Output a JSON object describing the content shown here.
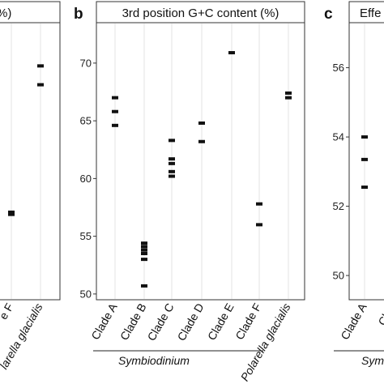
{
  "chart_data": [
    {
      "panel": "a",
      "type": "scatter",
      "title": "%)",
      "title_partial": true,
      "ylim": [
        48.5,
        73.5
      ],
      "categories": [
        "Clade F",
        "Polarella glacialis"
      ],
      "category_display": [
        "e F",
        "larella glacialis"
      ],
      "points": [
        {
          "category": "Clade F",
          "y": 56.4
        },
        {
          "category": "Clade F",
          "y": 56.2
        },
        {
          "category": "Polarella glacialis",
          "y": 69.6
        },
        {
          "category": "Polarella glacialis",
          "y": 67.9
        }
      ],
      "grid": "vertical"
    },
    {
      "panel": "b",
      "type": "scatter",
      "title": "3rd position G+C content (%)",
      "ylabel": "",
      "ylim": [
        49.5,
        73.5
      ],
      "yticks": [
        50,
        55,
        60,
        65,
        70
      ],
      "categories": [
        "Clade A",
        "Clade B",
        "Clade C",
        "Clade D",
        "Clade E",
        "Clade F",
        "Polarella glacialis"
      ],
      "points": [
        {
          "category": "Clade A",
          "y": 67.0
        },
        {
          "category": "Clade A",
          "y": 65.8
        },
        {
          "category": "Clade A",
          "y": 64.6
        },
        {
          "category": "Clade B",
          "y": 54.4
        },
        {
          "category": "Clade B",
          "y": 54.1
        },
        {
          "category": "Clade B",
          "y": 53.8
        },
        {
          "category": "Clade B",
          "y": 53.5
        },
        {
          "category": "Clade B",
          "y": 53.0
        },
        {
          "category": "Clade B",
          "y": 50.7
        },
        {
          "category": "Clade C",
          "y": 63.3
        },
        {
          "category": "Clade C",
          "y": 61.7
        },
        {
          "category": "Clade C",
          "y": 61.3
        },
        {
          "category": "Clade C",
          "y": 60.6
        },
        {
          "category": "Clade C",
          "y": 60.2
        },
        {
          "category": "Clade D",
          "y": 64.8
        },
        {
          "category": "Clade D",
          "y": 63.2
        },
        {
          "category": "Clade E",
          "y": 70.9
        },
        {
          "category": "Clade F",
          "y": 57.8
        },
        {
          "category": "Clade F",
          "y": 56.0
        },
        {
          "category": "Polarella glacialis",
          "y": 67.4
        },
        {
          "category": "Polarella glacialis",
          "y": 67.0
        }
      ],
      "group_label": "Symbiodinium",
      "grid": "vertical"
    },
    {
      "panel": "c",
      "type": "scatter",
      "title": "Effe",
      "title_partial": true,
      "ylim": [
        49.3,
        57.3
      ],
      "yticks": [
        50,
        52,
        54,
        56
      ],
      "categories": [
        "Clade A",
        "Clade B"
      ],
      "category_display": [
        "Clade A",
        "Clad"
      ],
      "points": [
        {
          "category": "Clade A",
          "y": 54.0
        },
        {
          "category": "Clade A",
          "y": 53.35
        },
        {
          "category": "Clade A",
          "y": 52.55
        }
      ],
      "group_label": "Sym",
      "grid": "vertical"
    }
  ],
  "labels": {
    "panel_b_letter": "b",
    "panel_c_letter": "c"
  }
}
